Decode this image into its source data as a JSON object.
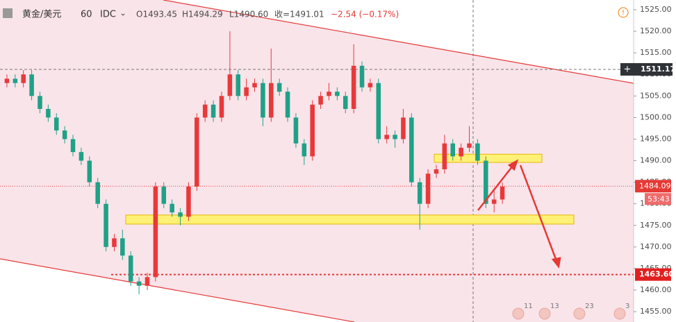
{
  "chart_data": {
    "type": "candlestick",
    "symbol": "黄金/美元",
    "interval": "60",
    "exchange": "IDC",
    "ohlc_labels": [
      "O1493.45",
      "H1494.29",
      "L1490.60",
      "收=1491.01"
    ],
    "change": "−2.54 (−0.17%)",
    "up_color": "#e8393a",
    "down_color": "#1fa187",
    "open": [
      1508,
      1509,
      1508,
      1510,
      1505,
      1502,
      1500,
      1497,
      1495,
      1492,
      1490,
      1485,
      1480,
      1470,
      1472,
      1468,
      1462,
      1461,
      1463,
      1484,
      1480,
      1478,
      1477,
      1484,
      1500,
      1503,
      1500,
      1505,
      1510,
      1505,
      1507,
      1508,
      1500,
      1508,
      1506,
      1500,
      1494,
      1491,
      1503,
      1505,
      1506,
      1505,
      1502,
      1512,
      1507,
      1508,
      1495,
      1496,
      1495,
      1500,
      1485,
      1480,
      1487,
      1488,
      1494,
      1491,
      1493,
      1494,
      1490,
      1480,
      1481
    ],
    "high": [
      1510,
      1510,
      1511,
      1511,
      1506,
      1503,
      1501,
      1498,
      1496,
      1493,
      1491,
      1486,
      1481,
      1473,
      1474,
      1469,
      1463,
      1464,
      1485,
      1485,
      1481,
      1479,
      1485,
      1501,
      1504,
      1504,
      1506,
      1520,
      1511,
      1509,
      1509,
      1509,
      1516,
      1509,
      1507,
      1501,
      1495,
      1504,
      1506,
      1508,
      1507,
      1506,
      1517,
      1513,
      1509,
      1509,
      1498,
      1497,
      1502,
      1501,
      1486,
      1488,
      1489,
      1496,
      1495,
      1494,
      1498,
      1495,
      1491,
      1483,
      1485
    ],
    "low": [
      1507,
      1507,
      1507,
      1504,
      1501,
      1499,
      1496,
      1494,
      1491,
      1489,
      1484,
      1479,
      1469,
      1469,
      1467,
      1461,
      1459,
      1460,
      1462,
      1479,
      1477,
      1475,
      1476,
      1483,
      1499,
      1499,
      1499,
      1504,
      1504,
      1504,
      1506,
      1498,
      1499,
      1505,
      1499,
      1493,
      1489,
      1490,
      1502,
      1504,
      1504,
      1501,
      1501,
      1506,
      1506,
      1494,
      1494,
      1493,
      1494,
      1484,
      1474,
      1479,
      1486,
      1487,
      1490,
      1490,
      1492,
      1489,
      1479,
      1478,
      1480
    ],
    "close": [
      1509,
      1508,
      1510,
      1505,
      1502,
      1500,
      1497,
      1495,
      1492,
      1490,
      1485,
      1480,
      1470,
      1472,
      1468,
      1462,
      1461,
      1463,
      1484,
      1480,
      1478,
      1477,
      1484,
      1500,
      1503,
      1500,
      1505,
      1510,
      1505,
      1507,
      1508,
      1500,
      1508,
      1506,
      1500,
      1494,
      1491,
      1503,
      1505,
      1506,
      1505,
      1502,
      1512,
      1507,
      1508,
      1495,
      1496,
      1495,
      1500,
      1485,
      1480,
      1487,
      1488,
      1494,
      1491,
      1493,
      1494,
      1490,
      1480,
      1481,
      1484
    ],
    "ylim": [
      1452.6,
      1527.25
    ],
    "yticks": [
      {
        "value": 1455,
        "label": "1455.00"
      },
      {
        "value": 1460,
        "label": "1460.00"
      },
      {
        "value": 1465,
        "label": "1465.00"
      },
      {
        "value": 1470,
        "label": "1470.00"
      },
      {
        "value": 1475,
        "label": "1475.00"
      },
      {
        "value": 1480,
        "label": "1480.00"
      },
      {
        "value": 1485,
        "label": "1485.00"
      },
      {
        "value": 1490,
        "label": "1490.00"
      },
      {
        "value": 1495,
        "label": "1495.00"
      },
      {
        "value": 1500,
        "label": "1500.00"
      },
      {
        "value": 1505,
        "label": "1505.00"
      },
      {
        "value": 1510,
        "label": "1510.00"
      },
      {
        "value": 1515,
        "label": "1515.00"
      },
      {
        "value": 1520,
        "label": "1520.00"
      },
      {
        "value": 1525,
        "label": "1525.00"
      }
    ],
    "crosshair_price": 1511.17,
    "last_price": 1484.09,
    "countdown": "53:43",
    "target_price": 1463.6,
    "target_label": "1463.60",
    "zones": [
      {
        "low": 1475.3,
        "high": 1477.4
      },
      {
        "low": 1489.6,
        "high": 1491.5
      }
    ],
    "events": [
      "11",
      "13",
      "23",
      "3"
    ]
  }
}
